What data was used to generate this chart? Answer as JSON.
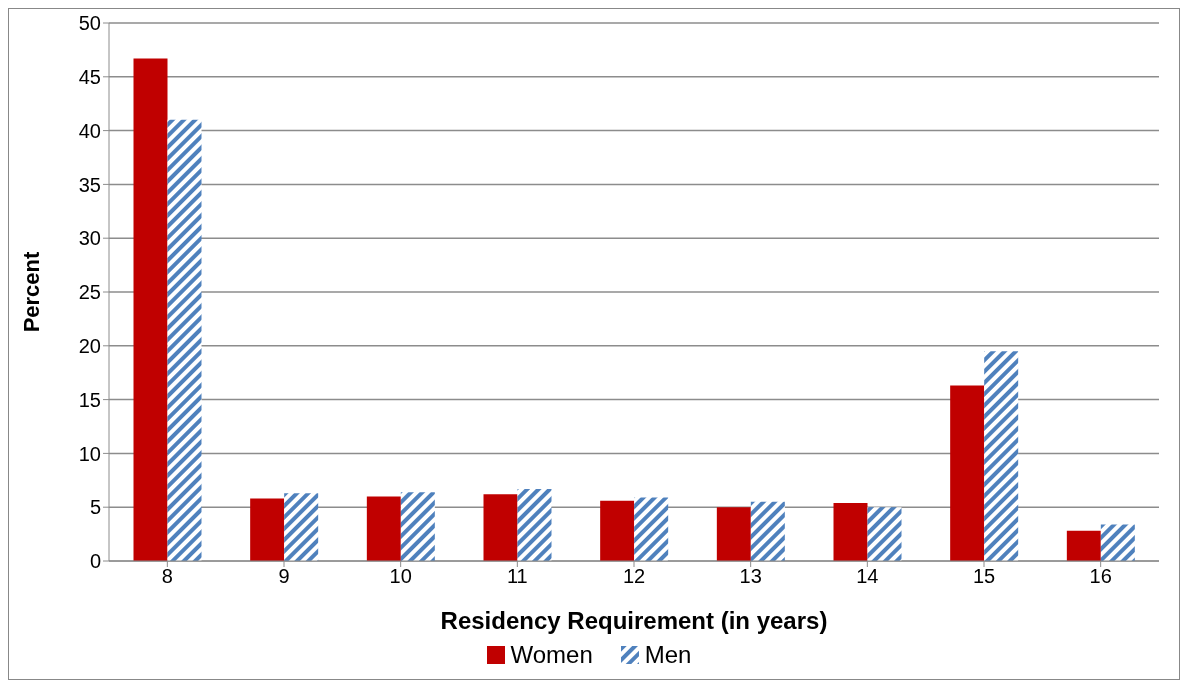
{
  "chart_data": {
    "type": "bar",
    "xlabel": "Residency Requirement (in years)",
    "ylabel": "Percent",
    "categories": [
      "8",
      "9",
      "10",
      "11",
      "12",
      "13",
      "14",
      "15",
      "16"
    ],
    "series": [
      {
        "name": "Women",
        "color": "#c00000",
        "values": [
          46.7,
          5.8,
          6.0,
          6.2,
          5.6,
          5.0,
          5.4,
          16.3,
          2.8
        ]
      },
      {
        "name": "Men",
        "color": "#4f81bd",
        "values": [
          41.0,
          6.3,
          6.4,
          6.7,
          5.9,
          5.5,
          5.0,
          19.5,
          3.4
        ]
      }
    ],
    "ylim": [
      0,
      50
    ],
    "yticks": [
      0,
      5,
      10,
      15,
      20,
      25,
      30,
      35,
      40,
      45,
      50
    ],
    "grid": "y",
    "legend": "bottom"
  }
}
